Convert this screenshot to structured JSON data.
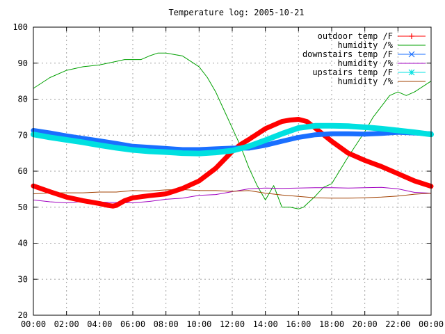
{
  "chart_data": {
    "type": "line",
    "title": "Temperature log: 2005-10-21",
    "xlabel": "",
    "ylabel": "",
    "xlim": [
      0,
      24
    ],
    "ylim": [
      20,
      100
    ],
    "grid": true,
    "legend_position": "top-right",
    "x_ticks": [
      {
        "value": 0,
        "label": "00:00"
      },
      {
        "value": 2,
        "label": "02:00"
      },
      {
        "value": 4,
        "label": "04:00"
      },
      {
        "value": 6,
        "label": "06:00"
      },
      {
        "value": 8,
        "label": "08:00"
      },
      {
        "value": 10,
        "label": "10:00"
      },
      {
        "value": 12,
        "label": "12:00"
      },
      {
        "value": 14,
        "label": "14:00"
      },
      {
        "value": 16,
        "label": "16:00"
      },
      {
        "value": 18,
        "label": "18:00"
      },
      {
        "value": 20,
        "label": "20:00"
      },
      {
        "value": 22,
        "label": "22:00"
      },
      {
        "value": 24,
        "label": "00:00"
      }
    ],
    "y_ticks": [
      20,
      30,
      40,
      50,
      60,
      70,
      80,
      90,
      100
    ],
    "series": [
      {
        "name": "outdoor temp /F",
        "color": "#ff0000",
        "marker": "plus",
        "width": 7,
        "x": [
          0,
          1,
          2,
          3,
          4,
          4.5,
          4.8,
          5,
          5.5,
          6,
          7,
          8,
          9,
          10,
          11,
          12,
          12.5,
          13,
          14,
          15,
          15.5,
          16,
          16.5,
          17,
          18,
          19,
          20,
          21,
          22,
          23,
          24
        ],
        "y": [
          55.9,
          54.3,
          52.8,
          51.8,
          51.0,
          50.5,
          50.3,
          50.5,
          51.8,
          52.6,
          53.2,
          53.7,
          55.2,
          57.3,
          60.8,
          65.5,
          67.4,
          68.8,
          71.8,
          73.8,
          74.2,
          74.4,
          73.8,
          72.0,
          68.3,
          65.0,
          63.0,
          61.3,
          59.3,
          57.3,
          55.8
        ]
      },
      {
        "name": "humidity /%",
        "color": "#00a000",
        "width": 1,
        "x": [
          0,
          1,
          2,
          3,
          4,
          5,
          5.5,
          6,
          6.5,
          7,
          7.5,
          8,
          9,
          10,
          10.5,
          11,
          11.5,
          12,
          12.5,
          13,
          13.5,
          14,
          14.5,
          15,
          15.5,
          16,
          16.3,
          17,
          17.5,
          18,
          19,
          20,
          20.5,
          21,
          21.5,
          22,
          22.5,
          23,
          24
        ],
        "y": [
          83,
          86,
          88,
          89,
          89.5,
          90.5,
          91,
          91,
          91,
          92,
          92.8,
          92.8,
          92,
          89,
          86,
          82,
          77,
          72,
          67,
          61,
          56,
          52,
          56,
          50,
          50,
          49.5,
          50,
          53,
          55.5,
          56.5,
          64,
          71,
          75,
          78,
          81,
          82,
          81,
          82,
          85
        ]
      },
      {
        "name": "downstairs temp /F",
        "color": "#1a6fff",
        "marker": "cross",
        "width": 7,
        "x": [
          0,
          1,
          2,
          3,
          4,
          5,
          6,
          7,
          8,
          9,
          10,
          11,
          12,
          13,
          14,
          15,
          16,
          17,
          18,
          19,
          20,
          21,
          22,
          23,
          24
        ],
        "y": [
          71.3,
          70.6,
          69.8,
          69.1,
          68.4,
          67.7,
          66.9,
          66.6,
          66.3,
          66.0,
          66.0,
          66.2,
          66.4,
          66.4,
          67.2,
          68.3,
          69.4,
          70.1,
          70.4,
          70.4,
          70.3,
          70.5,
          70.8,
          70.6,
          70.4
        ]
      },
      {
        "name": "humidity /%",
        "color": "#a000c0",
        "width": 1,
        "x": [
          0,
          1,
          2,
          3,
          4,
          5,
          6,
          7,
          8,
          9,
          10,
          11,
          12,
          13,
          14,
          15,
          16,
          17,
          18,
          19,
          20,
          21,
          22,
          23,
          24
        ],
        "y": [
          52,
          51.5,
          51.2,
          51.6,
          51.4,
          51.3,
          51.2,
          51.6,
          52.2,
          52.5,
          53.3,
          53.5,
          54.3,
          55.1,
          55.3,
          55.2,
          55.3,
          55.4,
          55.4,
          55.3,
          55.4,
          55.5,
          55.1,
          54.1,
          53.9
        ]
      },
      {
        "name": "upstairs temp /F",
        "color": "#00e0e0",
        "marker": "star",
        "width": 8,
        "x": [
          0,
          1,
          2,
          3,
          4,
          5,
          6,
          7,
          8,
          9,
          10,
          11,
          12,
          13,
          14,
          15,
          16,
          17,
          18,
          19,
          20,
          21,
          22,
          23,
          24
        ],
        "y": [
          70.2,
          69.4,
          68.7,
          68.0,
          67.2,
          66.5,
          65.9,
          65.5,
          65.3,
          65.0,
          64.9,
          65.2,
          65.7,
          66.9,
          68.6,
          70.4,
          72.0,
          72.6,
          72.6,
          72.5,
          72.2,
          71.8,
          71.3,
          70.8,
          70.2
        ]
      },
      {
        "name": "humidity /%",
        "color": "#a04000",
        "width": 1,
        "x": [
          0,
          1,
          2,
          3,
          4,
          5,
          6,
          7,
          8,
          9,
          10,
          11,
          12,
          13,
          14,
          15,
          16,
          17,
          18,
          19,
          20,
          21,
          22,
          23,
          24
        ],
        "y": [
          53.7,
          54.0,
          54.0,
          54.0,
          54.2,
          54.2,
          54.6,
          54.5,
          54.8,
          54.9,
          54.6,
          54.6,
          54.4,
          54.6,
          53.9,
          53.4,
          53.0,
          52.6,
          52.5,
          52.5,
          52.6,
          52.8,
          53.1,
          53.6,
          53.9
        ]
      }
    ]
  }
}
